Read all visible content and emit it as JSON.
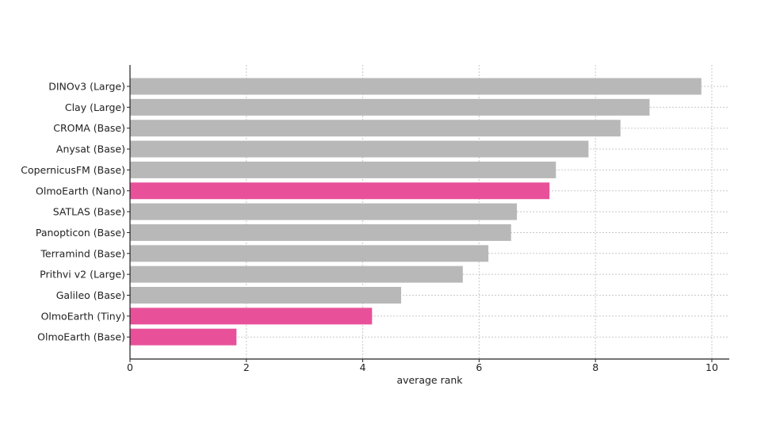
{
  "chart_data": {
    "type": "bar",
    "orientation": "horizontal",
    "categories": [
      "DINOv3 (Large)",
      "Clay (Large)",
      "CROMA (Base)",
      "Anysat (Base)",
      "CopernicusFM (Base)",
      "OlmoEarth (Nano)",
      "SATLAS (Base)",
      "Panopticon (Base)",
      "Terramind (Base)",
      "Prithvi v2 (Large)",
      "Galileo (Base)",
      "OlmoEarth (Tiny)",
      "OlmoEarth (Base)"
    ],
    "values": [
      9.82,
      8.93,
      8.43,
      7.88,
      7.32,
      7.21,
      6.65,
      6.55,
      6.16,
      5.72,
      4.66,
      4.16,
      1.83
    ],
    "highlighted": [
      false,
      false,
      false,
      false,
      false,
      true,
      false,
      false,
      false,
      false,
      false,
      true,
      true
    ],
    "colors": {
      "default": "#b8b8b8",
      "highlight": "#e8519a"
    },
    "title": "",
    "xlabel": "average rank",
    "ylabel": "",
    "xlim": [
      0,
      10.3
    ],
    "xticks": [
      0,
      2,
      4,
      6,
      8,
      10
    ],
    "xtick_labels": [
      "0",
      "2",
      "4",
      "6",
      "8",
      "10"
    ],
    "grid": true
  }
}
